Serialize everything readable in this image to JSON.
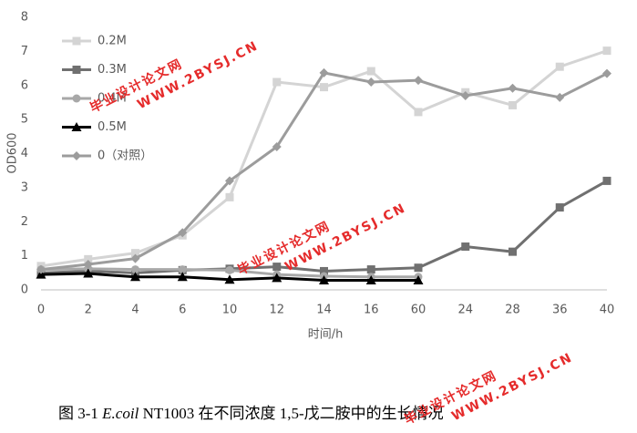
{
  "chart_data": {
    "type": "line",
    "categories": [
      "0",
      "2",
      "4",
      "6",
      "10",
      "12",
      "14",
      "16",
      "60",
      "24",
      "28",
      "36",
      "40"
    ],
    "series": [
      {
        "name": "0.2M",
        "color": "#d4d4d4",
        "marker": "square",
        "values": [
          0.7,
          0.9,
          1.08,
          1.6,
          2.72,
          6.1,
          5.95,
          6.42,
          5.22,
          5.8,
          5.42,
          6.55,
          7.02
        ]
      },
      {
        "name": "0.3M",
        "color": "#707070",
        "marker": "square",
        "values": [
          0.5,
          0.55,
          0.5,
          0.58,
          0.62,
          0.68,
          0.55,
          0.6,
          0.65,
          1.27,
          1.12,
          2.42,
          3.2
        ]
      },
      {
        "name": "0.4M",
        "color": "#a8a8a8",
        "marker": "circle",
        "values": [
          0.6,
          0.62,
          0.6,
          0.6,
          0.58,
          0.45,
          0.4,
          0.38,
          0.38,
          null,
          null,
          null,
          null
        ]
      },
      {
        "name": "0.5M",
        "color": "#000000",
        "marker": "triangle",
        "values": [
          0.45,
          0.48,
          0.38,
          0.38,
          0.3,
          0.35,
          0.28,
          0.28,
          0.28,
          null,
          null,
          null,
          null
        ]
      },
      {
        "name": "0（对照）",
        "color": "#9c9c9c",
        "marker": "diamond",
        "values": [
          0.6,
          0.75,
          0.92,
          1.68,
          3.2,
          4.2,
          6.37,
          6.1,
          6.15,
          5.7,
          5.92,
          5.65,
          6.35
        ]
      }
    ],
    "ylabel": "OD600",
    "xlabel": "时间/h",
    "ylim": [
      0,
      8
    ],
    "yticks": [
      0,
      1,
      2,
      3,
      4,
      5,
      6,
      7,
      8
    ],
    "grid": false,
    "legend": "upper left",
    "caption": [
      "图 3-1 ",
      "E.coil",
      " NT1003 在不同浓度 1,5-戊二胺中的生长情况"
    ],
    "watermark": [
      "毕业设计论文网",
      "WWW.2BYSJ.CN"
    ]
  }
}
